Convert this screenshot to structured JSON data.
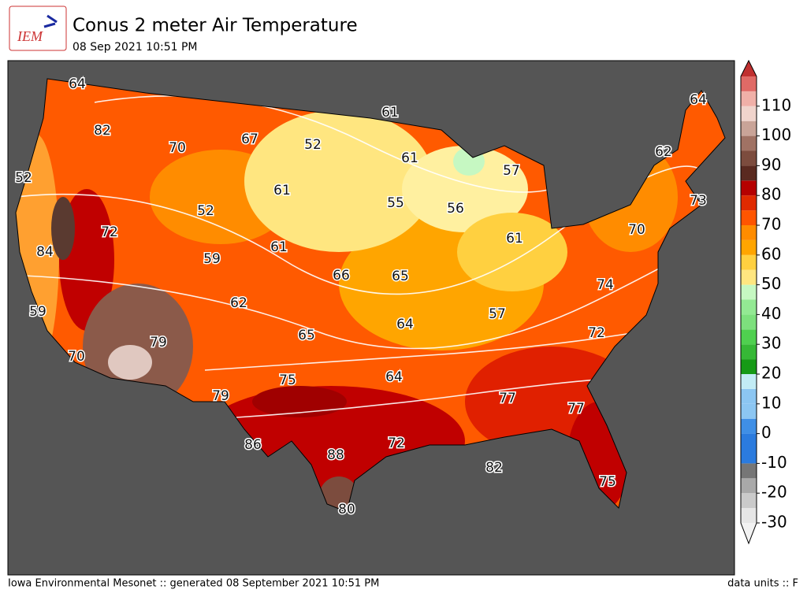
{
  "header": {
    "logo": "IEM",
    "title": "Conus 2 meter Air Temperature",
    "subtitle": "08 Sep 2021 10:51 PM"
  },
  "map": {
    "labels": [
      64,
      82,
      70,
      67,
      52,
      61,
      61,
      57,
      64,
      62,
      73,
      52,
      52,
      61,
      55,
      56,
      72,
      84,
      59,
      61,
      61,
      70,
      66,
      65,
      74,
      62,
      59,
      57,
      64,
      65,
      79,
      72,
      70,
      75,
      64,
      79,
      77,
      77,
      86,
      72,
      88,
      82,
      75,
      80
    ]
  },
  "colorbar": {
    "range": [
      -30,
      120
    ],
    "ticks": [
      -30,
      -20,
      -10,
      0,
      10,
      20,
      30,
      40,
      50,
      60,
      70,
      80,
      90,
      100,
      110
    ],
    "colors": [
      "#e6e6e6",
      "#cacaca",
      "#a9a9a9",
      "#767676",
      "#2b7bde",
      "#2b7bde",
      "#3f8fe6",
      "#8cc6f2",
      "#8cc6f2",
      "#c2ecf5",
      "#169a16",
      "#36b836",
      "#4fd04f",
      "#7de07d",
      "#93e993",
      "#c6f8c2",
      "#ffe680",
      "#ffd040",
      "#ffa500",
      "#ff8c00",
      "#ff5500",
      "#e02a00",
      "#b50000",
      "#5a2a20",
      "#7c4c3e",
      "#a07264",
      "#c9a498",
      "#f0d4cc",
      "#f0b0a8",
      "#e06a66"
    ],
    "over_color": "#c03030",
    "under_color": "#f2f2f2"
  },
  "footer": {
    "left": "Iowa Environmental Mesonet :: generated 08 September 2021 10:51 PM",
    "right": "data units :: F"
  }
}
